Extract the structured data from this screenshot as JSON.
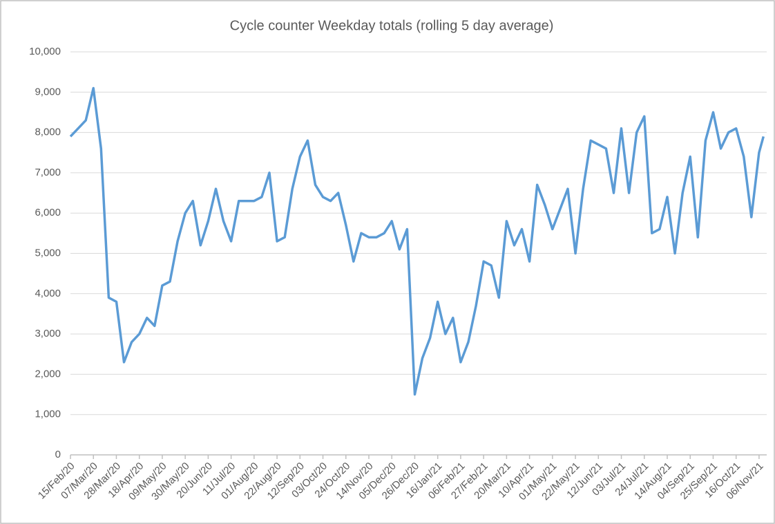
{
  "chart_data": {
    "type": "line",
    "title": "Cycle counter Weekday totals (rolling 5 day average)",
    "x": [
      "15/Feb/20",
      "22/Feb/20",
      "29/Feb/20",
      "07/Mar/20",
      "14/Mar/20",
      "21/Mar/20",
      "28/Mar/20",
      "04/Apr/20",
      "11/Apr/20",
      "18/Apr/20",
      "25/Apr/20",
      "02/May/20",
      "09/May/20",
      "16/May/20",
      "23/May/20",
      "30/May/20",
      "06/Jun/20",
      "13/Jun/20",
      "20/Jun/20",
      "27/Jun/20",
      "04/Jul/20",
      "11/Jul/20",
      "18/Jul/20",
      "25/Jul/20",
      "01/Aug/20",
      "08/Aug/20",
      "15/Aug/20",
      "22/Aug/20",
      "29/Aug/20",
      "05/Sep/20",
      "12/Sep/20",
      "19/Sep/20",
      "26/Sep/20",
      "03/Oct/20",
      "10/Oct/20",
      "17/Oct/20",
      "24/Oct/20",
      "31/Oct/20",
      "07/Nov/20",
      "14/Nov/20",
      "21/Nov/20",
      "28/Nov/20",
      "05/Dec/20",
      "12/Dec/20",
      "19/Dec/20",
      "26/Dec/20",
      "02/Jan/21",
      "09/Jan/21",
      "16/Jan/21",
      "23/Jan/21",
      "30/Jan/21",
      "06/Feb/21",
      "13/Feb/21",
      "20/Feb/21",
      "27/Feb/21",
      "06/Mar/21",
      "13/Mar/21",
      "20/Mar/21",
      "27/Mar/21",
      "03/Apr/21",
      "10/Apr/21",
      "17/Apr/21",
      "24/Apr/21",
      "01/May/21",
      "08/May/21",
      "15/May/21",
      "22/May/21",
      "29/May/21",
      "05/Jun/21",
      "12/Jun/21",
      "19/Jun/21",
      "26/Jun/21",
      "03/Jul/21",
      "10/Jul/21",
      "17/Jul/21",
      "24/Jul/21",
      "31/Jul/21",
      "07/Aug/21",
      "14/Aug/21",
      "21/Aug/21",
      "28/Aug/21",
      "04/Sep/21",
      "11/Sep/21",
      "18/Sep/21",
      "25/Sep/21",
      "02/Oct/21",
      "09/Oct/21",
      "16/Oct/21",
      "23/Oct/21",
      "30/Oct/21",
      "06/Nov/21",
      "10/Nov/21"
    ],
    "series": [
      {
        "name": "Weekday totals",
        "color": "#5b9bd5",
        "values": [
          7900,
          8100,
          8300,
          9100,
          7600,
          3900,
          3800,
          2300,
          2800,
          3000,
          3400,
          3200,
          4200,
          4300,
          5300,
          6000,
          6300,
          5200,
          5800,
          6600,
          5800,
          5300,
          6300,
          6300,
          6300,
          6400,
          7000,
          5300,
          5400,
          6600,
          7400,
          7800,
          6700,
          6400,
          6300,
          6500,
          5700,
          4800,
          5500,
          5400,
          5400,
          5500,
          5800,
          5100,
          5600,
          1500,
          2400,
          2900,
          3800,
          3000,
          3400,
          2300,
          2800,
          3700,
          4800,
          4700,
          3900,
          5800,
          5200,
          5600,
          4800,
          6700,
          6200,
          5600,
          6100,
          6600,
          5000,
          6600,
          7800,
          7700,
          7600,
          6500,
          8100,
          6500,
          8000,
          8400,
          5500,
          5600,
          6400,
          5000,
          6500,
          7400,
          5400,
          7800,
          8500,
          7600,
          8000,
          8100,
          7400,
          5900,
          7500,
          7900
        ]
      }
    ],
    "xlim": [
      "15/Feb/20",
      "13/Nov/21"
    ],
    "xticks": [
      "15/Feb/20",
      "07/Mar/20",
      "28/Mar/20",
      "18/Apr/20",
      "09/May/20",
      "30/May/20",
      "20/Jun/20",
      "11/Jul/20",
      "01/Aug/20",
      "22/Aug/20",
      "12/Sep/20",
      "03/Oct/20",
      "24/Oct/20",
      "14/Nov/20",
      "05/Dec/20",
      "26/Dec/20",
      "16/Jan/21",
      "06/Feb/21",
      "27/Feb/21",
      "20/Mar/21",
      "10/Apr/21",
      "01/May/21",
      "22/May/21",
      "12/Jun/21",
      "03/Jul/21",
      "24/Jul/21",
      "14/Aug/21",
      "04/Sep/21",
      "25/Sep/21",
      "16/Oct/21",
      "06/Nov/21"
    ],
    "ylim": [
      0,
      10000
    ],
    "yticks": [
      0,
      {
        "value": 1000,
        "label": "1,000"
      },
      {
        "value": 2000,
        "label": "2,000"
      },
      {
        "value": 3000,
        "label": "3,000"
      },
      {
        "value": 4000,
        "label": "4,000"
      },
      {
        "value": 5000,
        "label": "5,000"
      },
      {
        "value": 6000,
        "label": "6,000"
      },
      {
        "value": 7000,
        "label": "7,000"
      },
      {
        "value": 8000,
        "label": "8,000"
      },
      {
        "value": 9000,
        "label": "9,000"
      },
      {
        "value": 10000,
        "label": "10,000"
      }
    ],
    "grid": true
  }
}
